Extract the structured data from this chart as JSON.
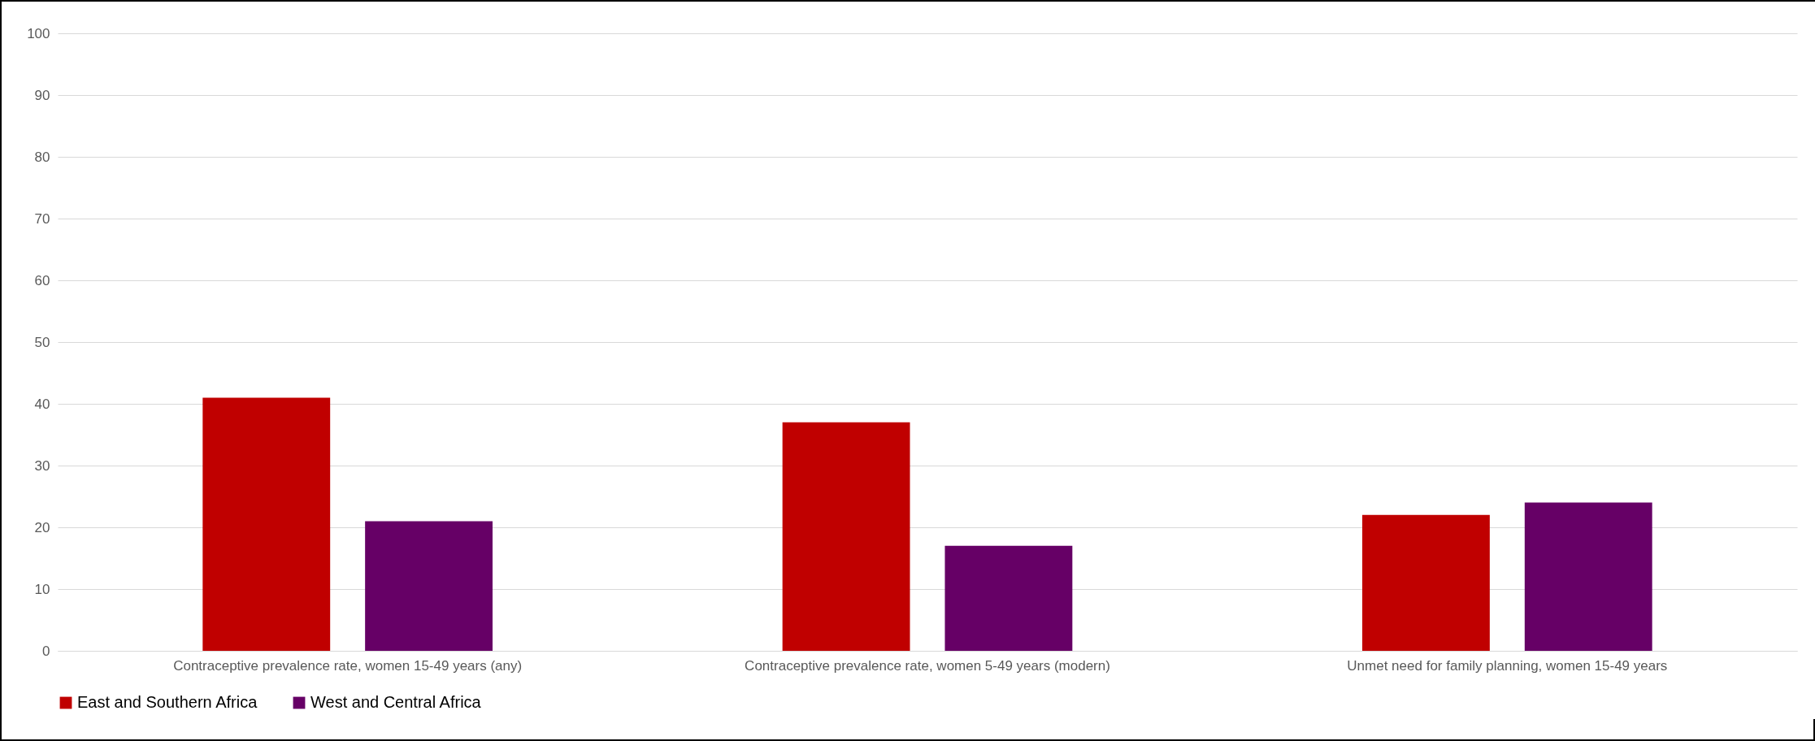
{
  "chart_data": {
    "type": "bar",
    "categories": [
      "Contraceptive prevalence rate, women 15-49 years (any)",
      "Contraceptive prevalence rate, women 5-49 years (modern)",
      "Unmet need for family planning, women 15-49 years"
    ],
    "series": [
      {
        "name": "East and Southern Africa",
        "color": "#c00000",
        "values": [
          41,
          37,
          22
        ]
      },
      {
        "name": "West and Central Africa",
        "color": "#660066",
        "values": [
          21,
          17,
          24
        ]
      }
    ],
    "ylim": [
      0,
      100
    ],
    "yticks": [
      0,
      10,
      20,
      30,
      40,
      50,
      60,
      70,
      80,
      90,
      100
    ],
    "grid": "y",
    "legend": "bottom"
  }
}
